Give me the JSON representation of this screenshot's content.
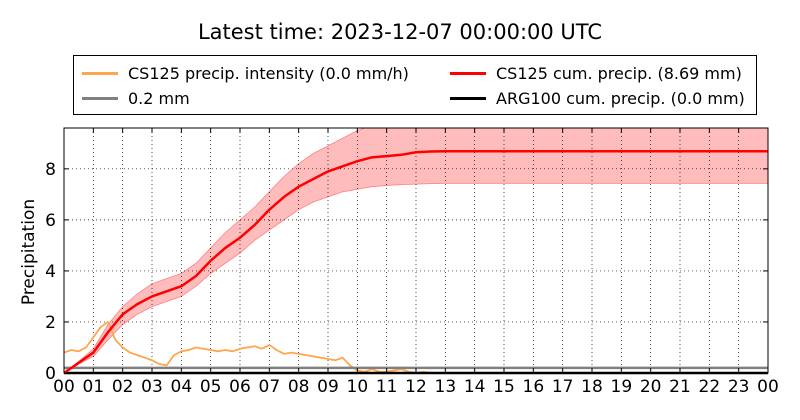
{
  "title": "Latest time: 2023-12-07 00:00:00 UTC",
  "legend": {
    "intensity": "CS125 precip. intensity (0.0 mm/h)",
    "cum": "CS125 cum. precip. (8.69 mm)",
    "threshold": "0.2 mm",
    "arg": "ARG100 cum. precip. (0.0 mm)"
  },
  "colors": {
    "intensity": "#ffa64d",
    "cum": "#ff0000",
    "band": "#ffb0b0",
    "threshold": "#808080",
    "arg": "#000000"
  },
  "chart_data": {
    "type": "line",
    "xlabel": "",
    "ylabel": "Precipitation",
    "xlim": [
      0,
      24
    ],
    "ylim": [
      0,
      9.6
    ],
    "grid": true,
    "legend_position": "top",
    "x_ticks": [
      "00",
      "01",
      "02",
      "03",
      "04",
      "05",
      "06",
      "07",
      "08",
      "09",
      "10",
      "11",
      "12",
      "13",
      "14",
      "15",
      "16",
      "17",
      "18",
      "19",
      "20",
      "21",
      "22",
      "23",
      "00"
    ],
    "y_ticks": [
      0,
      2,
      4,
      6,
      8
    ],
    "series": [
      {
        "name": "CS125 cum. precip. (8.69 mm)",
        "x": [
          0,
          0.5,
          1,
          1.5,
          2,
          2.5,
          3,
          3.5,
          4,
          4.5,
          5,
          5.5,
          6,
          6.5,
          7,
          7.5,
          8,
          8.5,
          9,
          9.5,
          10,
          10.5,
          11,
          11.5,
          12,
          12.5,
          13,
          14,
          16,
          18,
          20,
          22,
          24
        ],
        "y": [
          0,
          0.4,
          0.8,
          1.6,
          2.3,
          2.7,
          3.0,
          3.2,
          3.4,
          3.8,
          4.4,
          4.9,
          5.3,
          5.8,
          6.4,
          6.9,
          7.3,
          7.6,
          7.9,
          8.1,
          8.3,
          8.45,
          8.5,
          8.55,
          8.65,
          8.68,
          8.69,
          8.69,
          8.69,
          8.69,
          8.69,
          8.69,
          8.69
        ]
      },
      {
        "name": "CS125 cum. precip. band",
        "x": [
          0,
          0.5,
          1,
          1.5,
          2,
          2.5,
          3,
          3.5,
          4,
          4.5,
          5,
          5.5,
          6,
          6.5,
          7,
          7.5,
          8,
          8.5,
          9,
          9.5,
          10,
          10.5,
          11,
          11.5,
          12,
          12.5,
          13,
          14,
          16,
          18,
          20,
          22,
          24
        ],
        "lower": [
          0,
          0.35,
          0.65,
          1.3,
          1.9,
          2.3,
          2.6,
          2.8,
          3.0,
          3.4,
          3.9,
          4.3,
          4.7,
          5.2,
          5.6,
          6.0,
          6.4,
          6.7,
          6.9,
          7.1,
          7.2,
          7.3,
          7.35,
          7.38,
          7.4,
          7.42,
          7.43,
          7.43,
          7.43,
          7.43,
          7.43,
          7.43,
          7.43
        ],
        "upper": [
          0,
          0.45,
          0.95,
          1.9,
          2.6,
          3.1,
          3.5,
          3.7,
          3.9,
          4.3,
          4.9,
          5.5,
          6.0,
          6.5,
          7.1,
          7.7,
          8.2,
          8.6,
          8.9,
          9.2,
          9.5,
          9.7,
          9.8,
          9.85,
          9.9,
          9.95,
          9.95,
          9.95,
          9.95,
          9.95,
          9.95,
          9.95,
          9.95
        ]
      },
      {
        "name": "CS125 precip. intensity (0.0 mm/h)",
        "x": [
          0,
          0.25,
          0.5,
          0.75,
          1,
          1.25,
          1.5,
          1.75,
          2,
          2.25,
          2.5,
          2.75,
          3,
          3.25,
          3.5,
          3.75,
          4,
          4.25,
          4.5,
          4.75,
          5,
          5.25,
          5.5,
          5.75,
          6,
          6.25,
          6.5,
          6.75,
          7,
          7.25,
          7.5,
          7.75,
          8,
          8.25,
          8.5,
          8.75,
          9,
          9.25,
          9.5,
          9.75,
          10,
          10.25,
          10.5,
          10.75,
          11,
          11.25,
          11.5,
          11.75,
          12,
          12.25,
          12.5,
          13,
          24
        ],
        "y": [
          0.8,
          0.9,
          0.85,
          1.0,
          1.4,
          1.8,
          2.0,
          1.3,
          1.0,
          0.8,
          0.7,
          0.6,
          0.5,
          0.35,
          0.3,
          0.7,
          0.85,
          0.9,
          1.0,
          0.95,
          0.9,
          0.85,
          0.9,
          0.85,
          0.95,
          1.0,
          1.05,
          0.95,
          1.1,
          0.9,
          0.75,
          0.8,
          0.75,
          0.7,
          0.65,
          0.6,
          0.55,
          0.5,
          0.6,
          0.3,
          0.1,
          0.05,
          0.15,
          0.05,
          0.05,
          0.1,
          0.15,
          0.05,
          0.0,
          0.05,
          0.0,
          0.0,
          0.0
        ]
      },
      {
        "name": "0.2 mm",
        "x": [
          0,
          24
        ],
        "y": [
          0.2,
          0.2
        ]
      },
      {
        "name": "ARG100 cum. precip. (0.0 mm)",
        "x": [
          0,
          24
        ],
        "y": [
          0,
          0
        ]
      }
    ]
  }
}
